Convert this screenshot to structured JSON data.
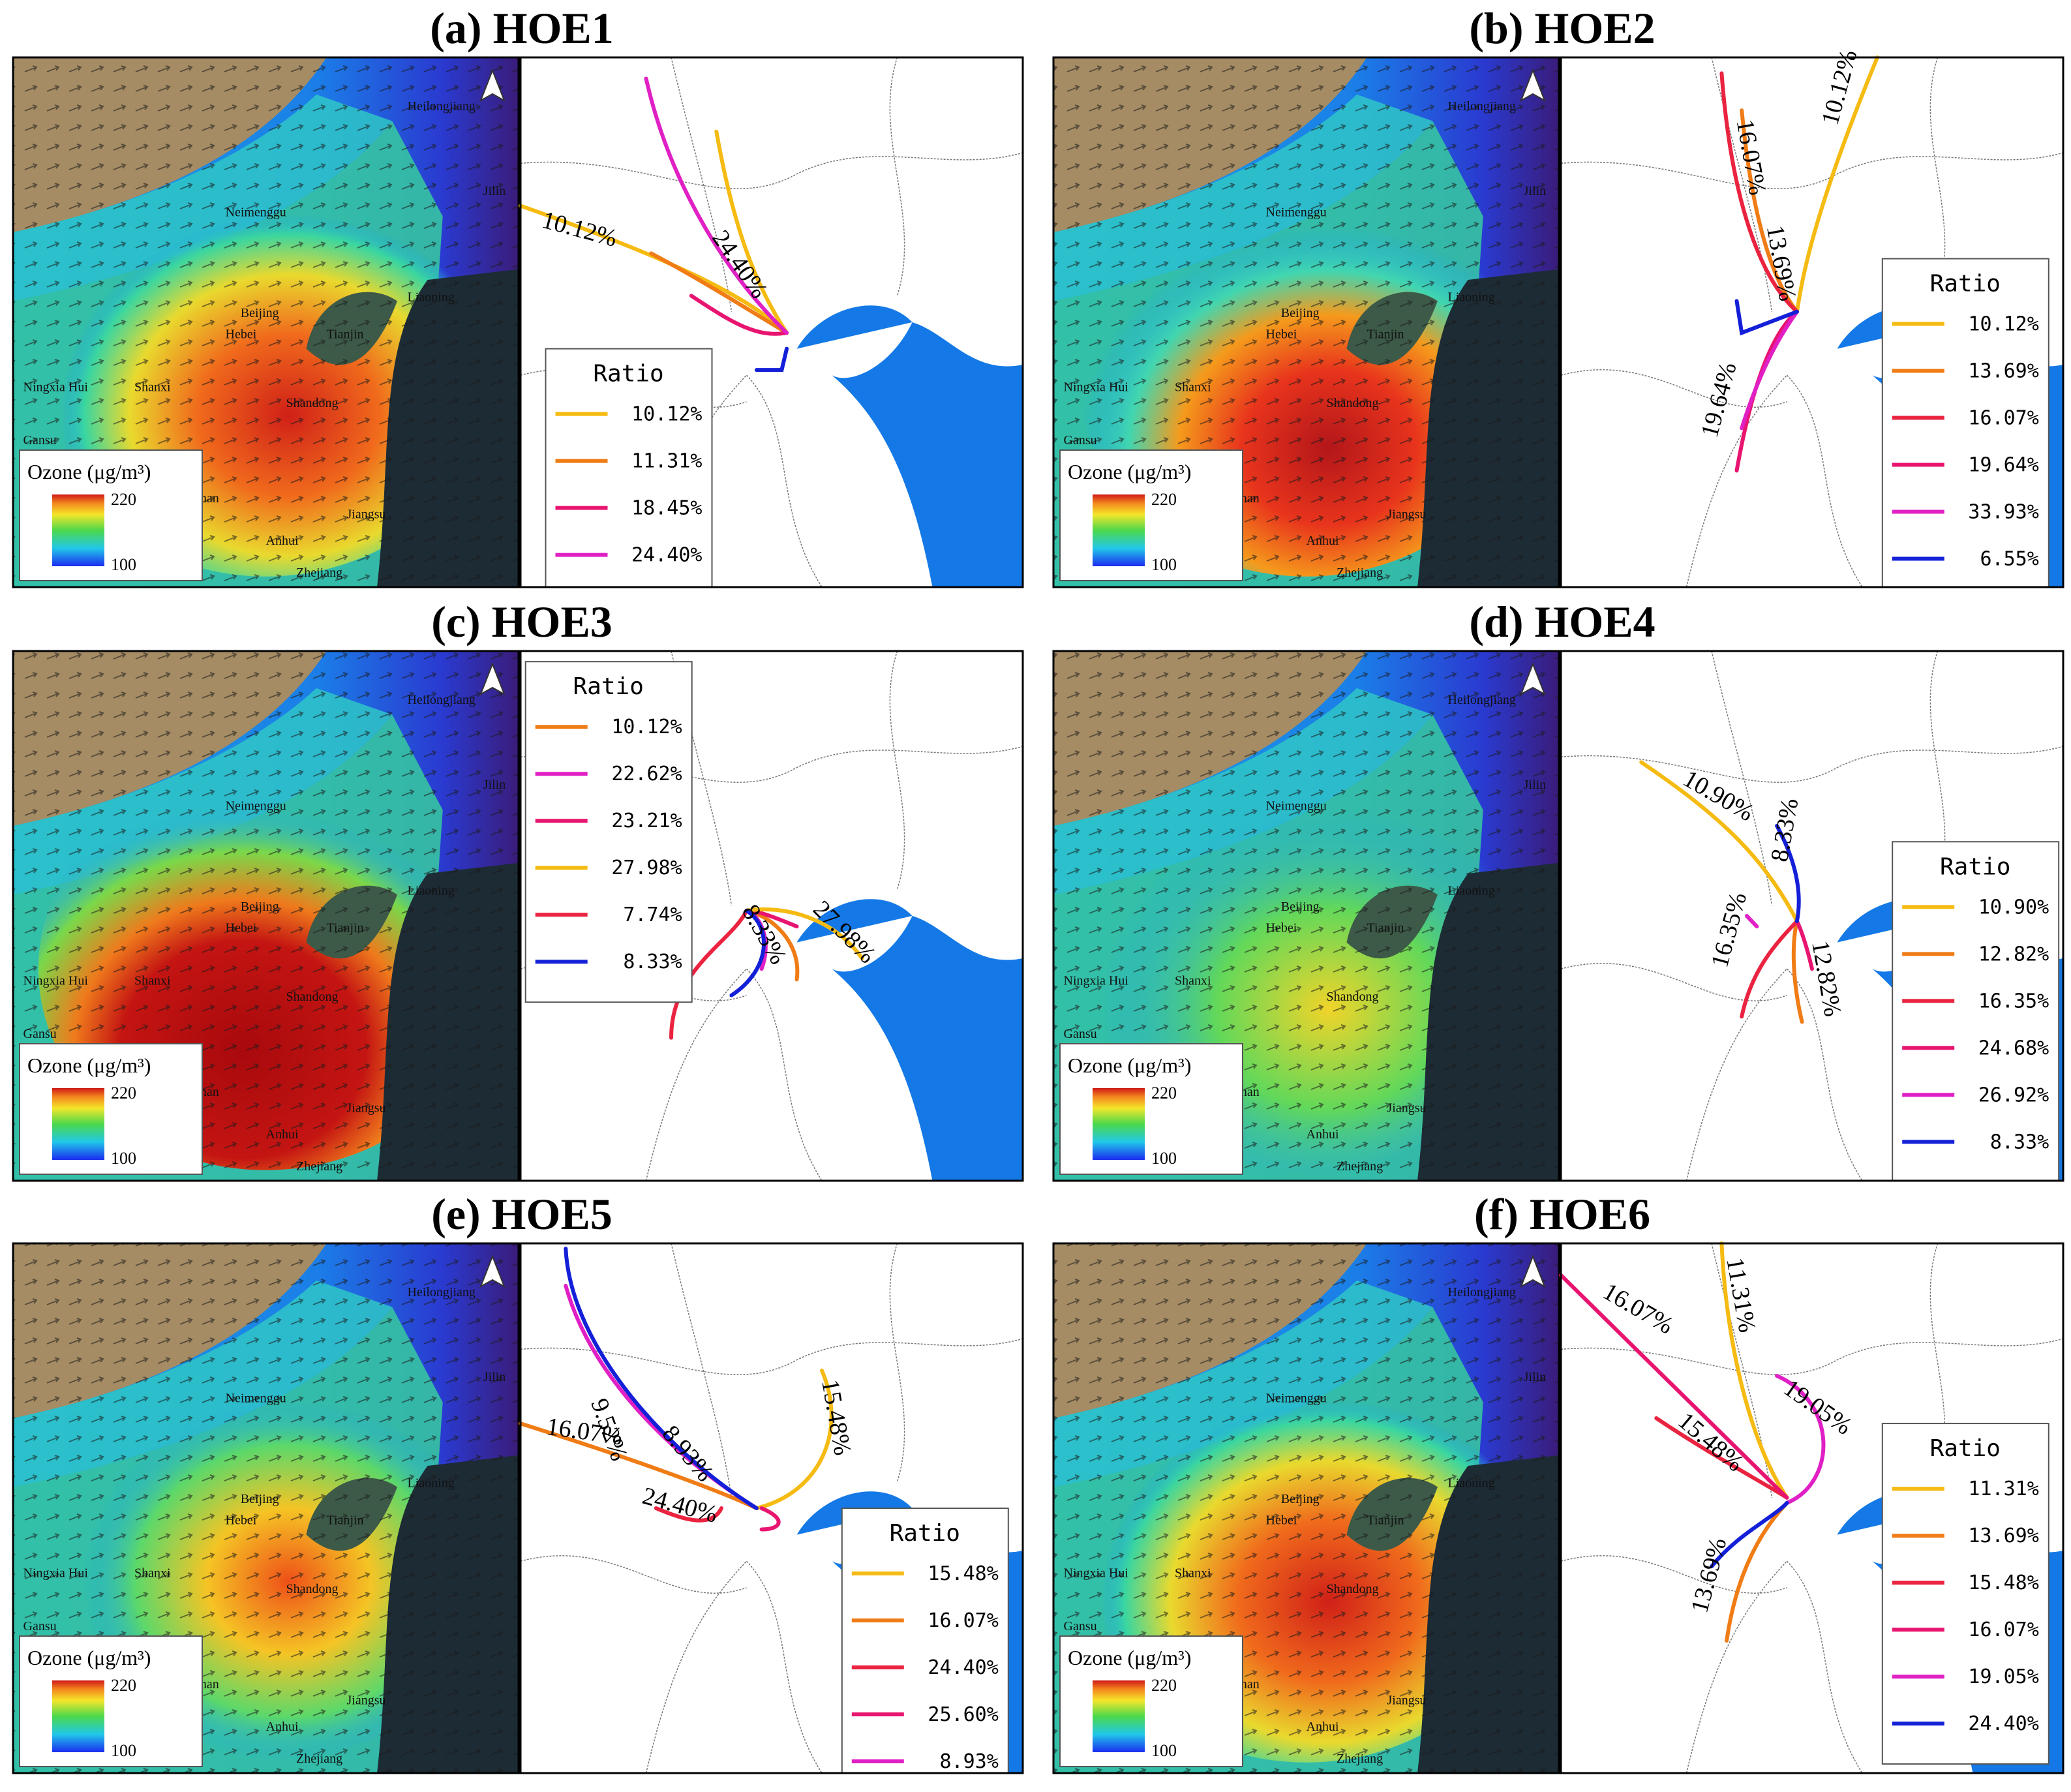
{
  "colors": {
    "land_light": "#ffffff",
    "sea": "#1479e6",
    "ozone_low": "#1b3cf0",
    "ozone_high": "#c31a1a",
    "yellow": "#f5bb12",
    "orange": "#f07c16",
    "red": "#ea2340",
    "crimson": "#e81570",
    "magenta": "#e020c4",
    "blue": "#1420d8"
  },
  "legend_common": {
    "ozone_label": "Ozone (μg/m³)",
    "ozone_max": "220",
    "ozone_min": "100",
    "ratio_title": "Ratio"
  },
  "panels": [
    {
      "title": "(a) HOE1",
      "intensity": "high",
      "place_labels": [
        "Heilongjiang",
        "Neimenggu",
        "Jilin",
        "Liaoning",
        "Beijing",
        "Hebei",
        "Tianjin",
        "Ningxia Hui",
        "Shanxi",
        "Gansu",
        "Shandong",
        "Henan",
        "Jiangsu",
        "Anhui",
        "Zhejiang"
      ],
      "ratios": [
        {
          "value": "10.12%",
          "color": "yellow"
        },
        {
          "value": "11.31%",
          "color": "orange"
        },
        {
          "value": "18.45%",
          "color": "crimson"
        },
        {
          "value": "24.40%",
          "color": "magenta"
        }
      ],
      "path_labels": [
        "10.12%",
        "24.40%"
      ]
    },
    {
      "title": "(b) HOE2",
      "intensity": "very-high",
      "place_labels": [
        "Heilongjiang",
        "Neimenggu",
        "Jilin",
        "Liaoning",
        "Beijing",
        "Hebei",
        "Tianjin",
        "Ningxia Hui",
        "Shanxi",
        "Gansu",
        "Shandong",
        "Henan",
        "Jiangsu",
        "Anhui",
        "Zhejiang"
      ],
      "ratios": [
        {
          "value": "10.12%",
          "color": "yellow"
        },
        {
          "value": "13.69%",
          "color": "orange"
        },
        {
          "value": "16.07%",
          "color": "red"
        },
        {
          "value": "19.64%",
          "color": "crimson"
        },
        {
          "value": "33.93%",
          "color": "magenta"
        },
        {
          "value": "6.55%",
          "color": "blue"
        }
      ],
      "path_labels": [
        "16.07%",
        "13.69%",
        "10.12%",
        "19.64%"
      ]
    },
    {
      "title": "(c) HOE3",
      "intensity": "extreme",
      "place_labels": [
        "Heilongjiang",
        "Neimenggu",
        "Jilin",
        "Liaoning",
        "Beijing",
        "Hebei",
        "Tianjin",
        "Ningxia Hui",
        "Shanxi",
        "Gansu",
        "Shandong",
        "Henan",
        "Jiangsu",
        "Anhui",
        "Zhejiang"
      ],
      "ratios": [
        {
          "value": "10.12%",
          "color": "orange"
        },
        {
          "value": "22.62%",
          "color": "magenta"
        },
        {
          "value": "23.21%",
          "color": "crimson"
        },
        {
          "value": "27.98%",
          "color": "yellow"
        },
        {
          "value": "7.74%",
          "color": "red"
        },
        {
          "value": "8.33%",
          "color": "blue"
        }
      ],
      "path_labels": [
        "7.74%",
        "8.33%",
        "27.98%"
      ]
    },
    {
      "title": "(d) HOE4",
      "intensity": "medium",
      "place_labels": [
        "Heilongjiang",
        "Neimenggu",
        "Jilin",
        "Liaoning",
        "Beijing",
        "Hebei",
        "Tianjin",
        "Ningxia Hui",
        "Shanxi",
        "Gansu",
        "Shandong",
        "Henan",
        "Jiangsu",
        "Anhui",
        "Zhejiang"
      ],
      "ratios": [
        {
          "value": "10.90%",
          "color": "yellow"
        },
        {
          "value": "12.82%",
          "color": "orange"
        },
        {
          "value": "16.35%",
          "color": "red"
        },
        {
          "value": "24.68%",
          "color": "crimson"
        },
        {
          "value": "26.92%",
          "color": "magenta"
        },
        {
          "value": "8.33%",
          "color": "blue"
        }
      ],
      "path_labels": [
        "10.90%",
        "8.33%",
        "16.35%",
        "12.82%"
      ]
    },
    {
      "title": "(e) HOE5",
      "intensity": "medium-high",
      "place_labels": [
        "Heilongjiang",
        "Neimenggu",
        "Jilin",
        "Liaoning",
        "Beijing",
        "Hebei",
        "Tianjin",
        "Ningxia Hui",
        "Shanxi",
        "Gansu",
        "Shandong",
        "Henan",
        "Jiangsu",
        "Anhui",
        "Zhejiang"
      ],
      "ratios": [
        {
          "value": "15.48%",
          "color": "yellow"
        },
        {
          "value": "16.07%",
          "color": "orange"
        },
        {
          "value": "24.40%",
          "color": "red"
        },
        {
          "value": "25.60%",
          "color": "crimson"
        },
        {
          "value": "8.93%",
          "color": "magenta"
        },
        {
          "value": "9.52%",
          "color": "blue"
        }
      ],
      "path_labels": [
        "9.52%",
        "8.93%",
        "16.07%",
        "24.40%",
        "15.48%"
      ]
    },
    {
      "title": "(f) HOE6",
      "intensity": "high",
      "place_labels": [
        "Heilongjiang",
        "Neimenggu",
        "Jilin",
        "Liaoning",
        "Beijing",
        "Hebei",
        "Tianjin",
        "Ningxia Hui",
        "Shanxi",
        "Gansu",
        "Shandong",
        "Henan",
        "Jiangsu",
        "Anhui",
        "Zhejiang"
      ],
      "ratios": [
        {
          "value": "11.31%",
          "color": "yellow"
        },
        {
          "value": "13.69%",
          "color": "orange"
        },
        {
          "value": "15.48%",
          "color": "red"
        },
        {
          "value": "16.07%",
          "color": "crimson"
        },
        {
          "value": "19.05%",
          "color": "magenta"
        },
        {
          "value": "24.40%",
          "color": "blue"
        }
      ],
      "path_labels": [
        "16.07%",
        "11.31%",
        "19.05%",
        "15.48%",
        "13.69%"
      ]
    }
  ]
}
